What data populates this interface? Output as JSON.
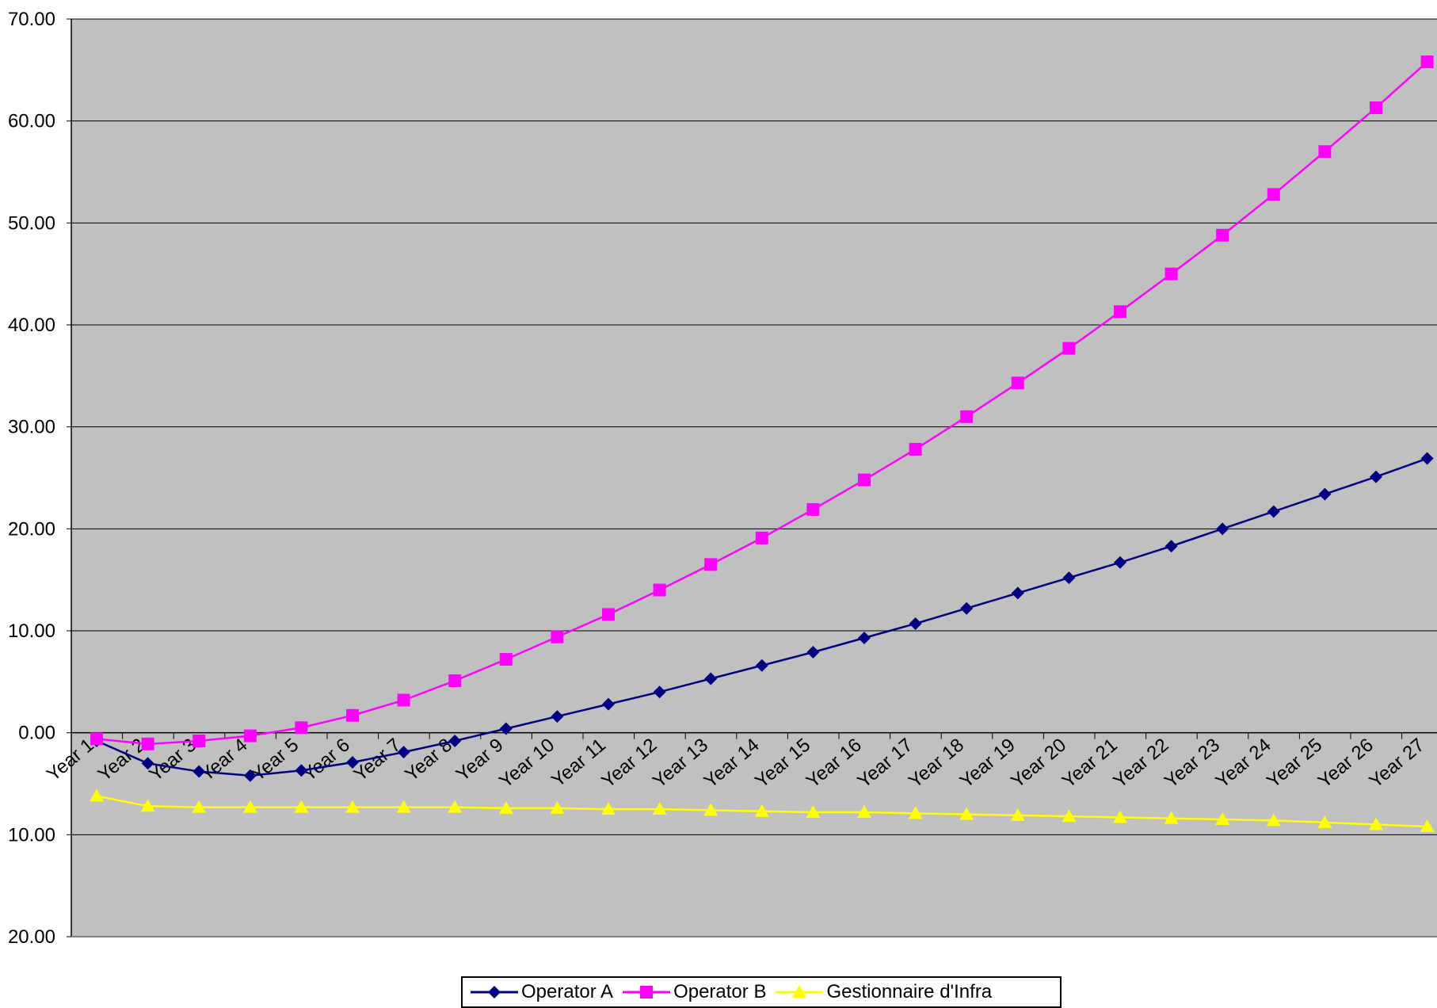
{
  "chart_data": {
    "type": "line",
    "title": "",
    "xlabel": "",
    "ylabel": "",
    "ylim": [
      -20,
      70
    ],
    "yticks": [
      70,
      60,
      50,
      40,
      30,
      20,
      10,
      0,
      -10,
      -20
    ],
    "ytick_labels": [
      "70.00",
      "60.00",
      "50.00",
      "40.00",
      "30.00",
      "20.00",
      "10.00",
      "0.00",
      "10.00",
      "20.00"
    ],
    "grid": true,
    "legend_position": "bottom",
    "plot_background": "#C0C0C0",
    "categories": [
      "Year 1",
      "Year 2",
      "Year 3",
      "Year 4",
      "Year 5",
      "Year 6",
      "Year 7",
      "Year 8",
      "Year 9",
      "Year 10",
      "Year 11",
      "Year 12",
      "Year 13",
      "Year 14",
      "Year 15",
      "Year 16",
      "Year 17",
      "Year 18",
      "Year 19",
      "Year 20",
      "Year 21",
      "Year 22",
      "Year 23",
      "Year 24",
      "Year 25",
      "Year 26",
      "Year 27"
    ],
    "series": [
      {
        "name": "Operator A",
        "color": "#000080",
        "marker": "diamond",
        "values": [
          -0.8,
          -3.0,
          -3.8,
          -4.2,
          -3.7,
          -2.9,
          -1.9,
          -0.8,
          0.4,
          1.6,
          2.8,
          4.0,
          5.3,
          6.6,
          7.9,
          9.3,
          10.7,
          12.2,
          13.7,
          15.2,
          16.7,
          18.3,
          20.0,
          21.7,
          23.4,
          25.1,
          26.9
        ]
      },
      {
        "name": "Operator B",
        "color": "#FF00FF",
        "marker": "square",
        "values": [
          -0.6,
          -1.1,
          -0.8,
          -0.3,
          0.5,
          1.7,
          3.2,
          5.1,
          7.2,
          9.4,
          11.6,
          14.0,
          16.5,
          19.1,
          21.9,
          24.8,
          27.8,
          31.0,
          34.3,
          37.7,
          41.3,
          45.0,
          48.8,
          52.8,
          57.0,
          61.3,
          65.8
        ]
      },
      {
        "name": "Gestionnaire d'Infra",
        "color": "#FFFF00",
        "marker": "triangle",
        "values": [
          -6.2,
          -7.2,
          -7.3,
          -7.3,
          -7.3,
          -7.3,
          -7.3,
          -7.3,
          -7.4,
          -7.4,
          -7.5,
          -7.5,
          -7.6,
          -7.7,
          -7.8,
          -7.8,
          -7.9,
          -8.0,
          -8.1,
          -8.2,
          -8.3,
          -8.4,
          -8.5,
          -8.6,
          -8.8,
          -9.0,
          -9.2
        ]
      }
    ]
  }
}
